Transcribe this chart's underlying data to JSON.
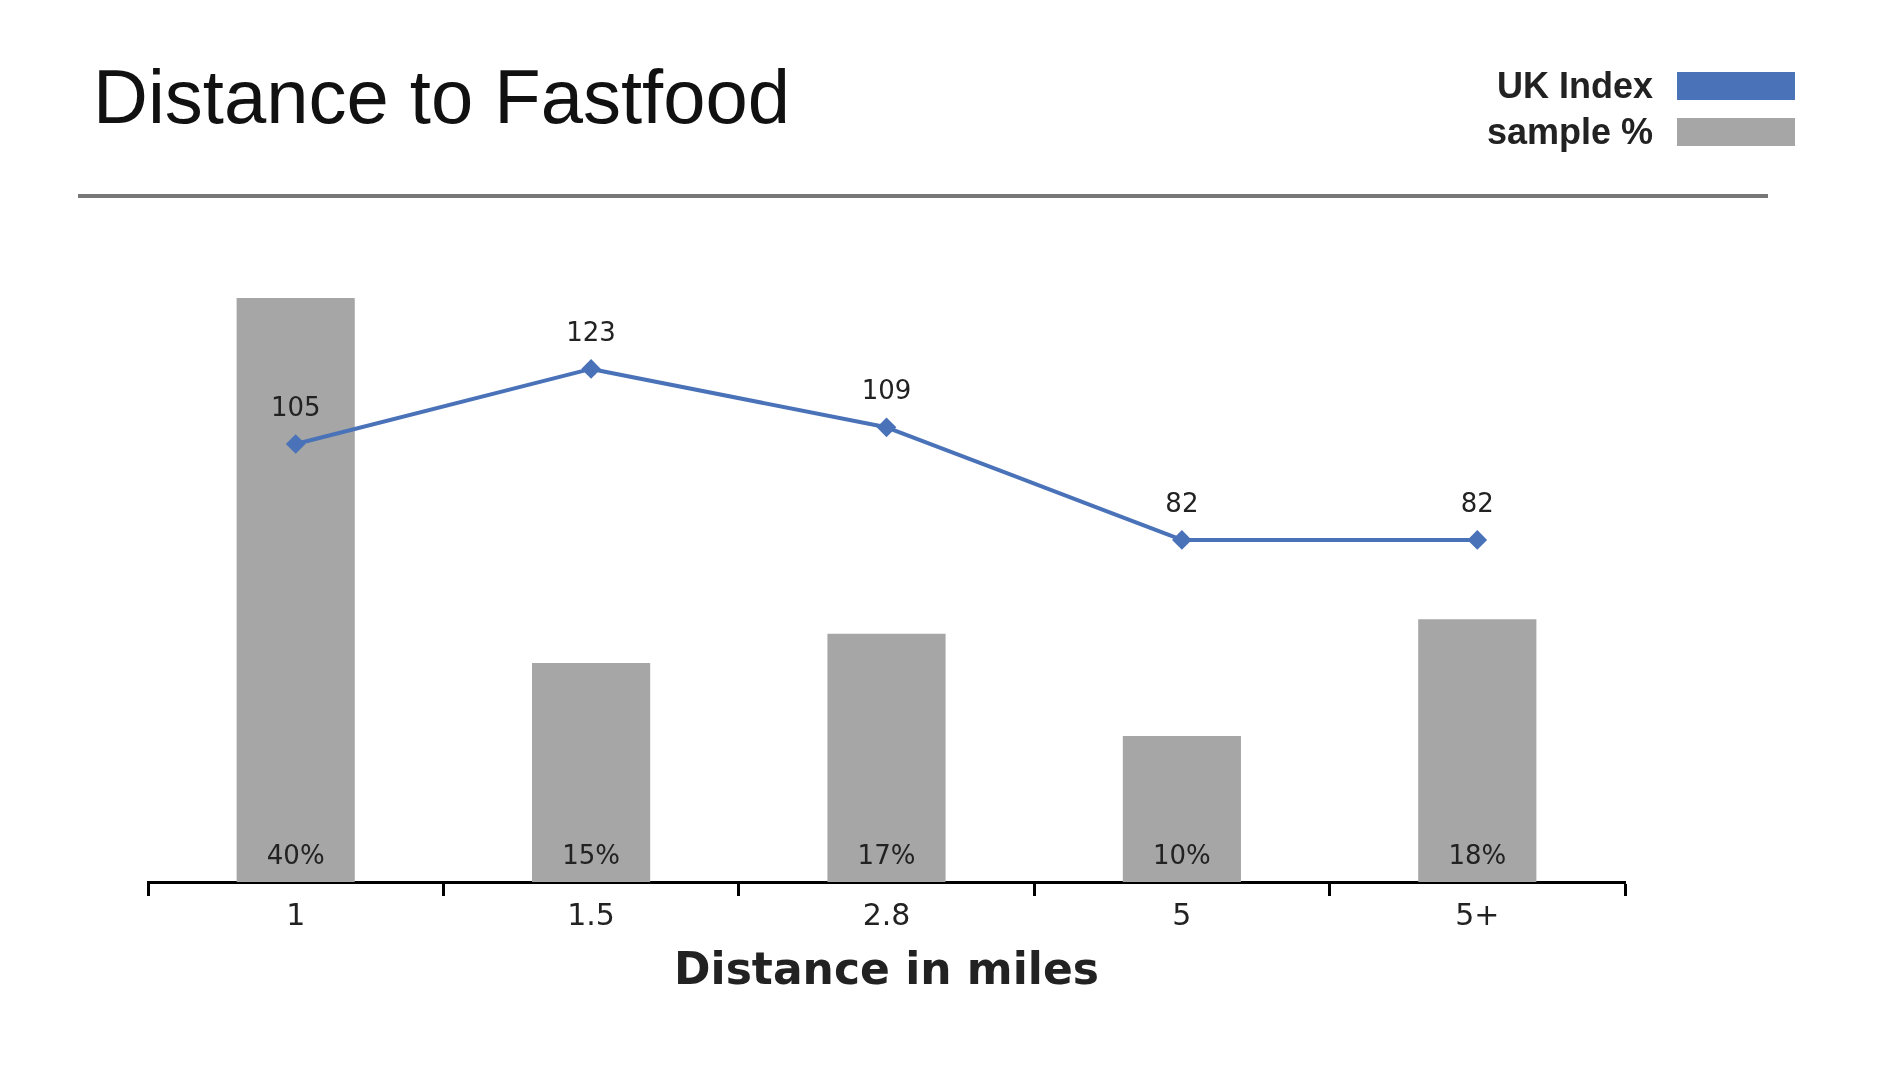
{
  "chart_data": {
    "type": "bar",
    "title": "Distance to Fastfood",
    "xlabel": "Distance in miles",
    "categories": [
      "1",
      "1.5",
      "2.8",
      "5",
      "5+"
    ],
    "series": [
      {
        "name": "UK Index",
        "type": "line",
        "axis": "y2",
        "color": "#4a72b8",
        "values": [
          105,
          123,
          109,
          82,
          82
        ],
        "value_labels": [
          "105",
          "123",
          "109",
          "82",
          "82"
        ]
      },
      {
        "name": "sample %",
        "color": "#a6a6a6",
        "values": [
          40,
          15,
          17,
          10,
          18
        ],
        "value_labels": [
          "40%",
          "15%",
          "17%",
          "10%",
          "18%"
        ]
      }
    ],
    "legend": "top right",
    "grid": false,
    "marker": "diamond",
    "line_style": "solid"
  }
}
